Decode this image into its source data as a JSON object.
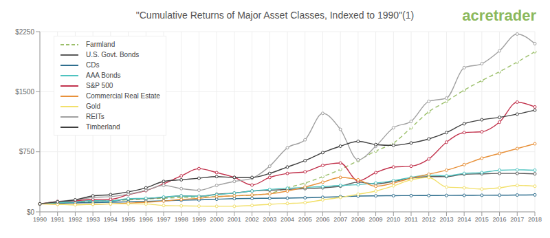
{
  "chart_data": {
    "type": "line",
    "title": "\"Cumulative Returns of Major Asset Classes, Indexed to 1990\"(1)",
    "annotation": "acretrader",
    "categories": [
      "1990",
      "1991",
      "1992",
      "1993",
      "1994",
      "1995",
      "1996",
      "1997",
      "1998",
      "1999",
      "2000",
      "2001",
      "2002",
      "2003",
      "2004",
      "2005",
      "2006",
      "2007",
      "2008",
      "2009",
      "2010",
      "2011",
      "2012",
      "2013",
      "2014",
      "2015",
      "2016",
      "2017",
      "2018"
    ],
    "series": [
      {
        "name": "Farmland",
        "color": "#9bbf6a",
        "line_style": "dashed",
        "values": [
          100,
          110,
          120,
          130,
          140,
          150,
          160,
          170,
          180,
          185,
          190,
          200,
          210,
          230,
          300,
          360,
          440,
          530,
          640,
          760,
          860,
          1050,
          1250,
          1380,
          1520,
          1640,
          1750,
          1870,
          2000
        ]
      },
      {
        "name": "U.S. Govt. Bonds",
        "color": "#5a5a5a",
        "values": [
          100,
          115,
          125,
          140,
          135,
          160,
          165,
          180,
          200,
          195,
          220,
          235,
          260,
          270,
          280,
          290,
          300,
          320,
          370,
          350,
          380,
          420,
          440,
          440,
          470,
          475,
          480,
          480,
          475
        ]
      },
      {
        "name": "CDs",
        "color": "#2e6e8e",
        "values": [
          100,
          107,
          112,
          116,
          120,
          126,
          132,
          138,
          145,
          150,
          158,
          165,
          168,
          170,
          172,
          176,
          182,
          190,
          197,
          200,
          202,
          203,
          204,
          205,
          206,
          207,
          208,
          210,
          212
        ]
      },
      {
        "name": "AAA Bonds",
        "color": "#4fc3c0",
        "values": [
          100,
          115,
          125,
          140,
          135,
          165,
          170,
          185,
          200,
          195,
          215,
          235,
          260,
          280,
          295,
          305,
          315,
          330,
          340,
          360,
          390,
          430,
          460,
          450,
          480,
          490,
          520,
          525,
          520
        ]
      },
      {
        "name": "S&P 500",
        "color": "#c2334d",
        "values": [
          100,
          130,
          140,
          155,
          157,
          215,
          265,
          350,
          450,
          540,
          490,
          430,
          335,
          430,
          480,
          500,
          580,
          610,
          385,
          490,
          560,
          570,
          660,
          870,
          990,
          1000,
          1120,
          1370,
          1310
        ]
      },
      {
        "name": "Commercial Real Estate",
        "color": "#e8913a",
        "values": [
          100,
          95,
          90,
          95,
          100,
          110,
          120,
          135,
          155,
          170,
          190,
          200,
          210,
          225,
          260,
          310,
          370,
          430,
          400,
          320,
          360,
          420,
          470,
          520,
          590,
          670,
          730,
          790,
          850
        ]
      },
      {
        "name": "Gold",
        "color": "#f2e06b",
        "values": [
          100,
          95,
          88,
          95,
          100,
          100,
          98,
          80,
          75,
          72,
          70,
          70,
          80,
          95,
          105,
          115,
          150,
          180,
          220,
          260,
          325,
          400,
          430,
          310,
          300,
          285,
          300,
          330,
          320
        ]
      },
      {
        "name": "REITs",
        "color": "#a0a0a0",
        "values": [
          100,
          130,
          150,
          180,
          190,
          220,
          270,
          330,
          290,
          270,
          330,
          380,
          420,
          570,
          800,
          900,
          1230,
          1030,
          650,
          820,
          1050,
          1130,
          1380,
          1420,
          1800,
          1850,
          2010,
          2220,
          2100
        ]
      },
      {
        "name": "Timberland",
        "color": "#3f3f3f",
        "values": [
          100,
          125,
          150,
          200,
          215,
          250,
          300,
          380,
          400,
          420,
          440,
          430,
          430,
          480,
          560,
          640,
          740,
          820,
          880,
          840,
          830,
          860,
          910,
          990,
          1100,
          1150,
          1180,
          1220,
          1270
        ]
      }
    ],
    "ylim": [
      0,
      2250
    ],
    "yticks": [
      {
        "value": 0,
        "label": "$0"
      },
      {
        "value": 750,
        "label": "$750"
      },
      {
        "value": 1500,
        "label": "$1500"
      },
      {
        "value": 2250,
        "label": "$2250"
      }
    ],
    "grid": true,
    "legend": "top-left",
    "marker": "circle"
  }
}
